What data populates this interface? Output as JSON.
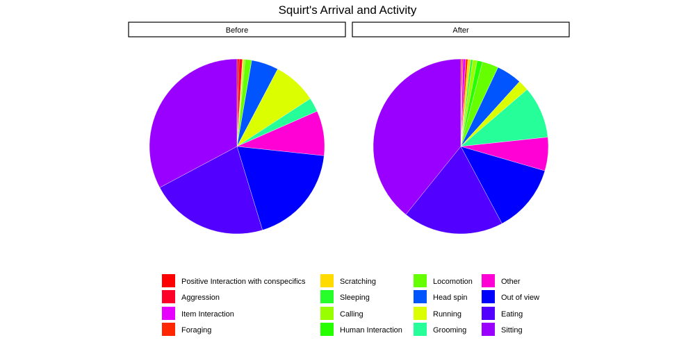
{
  "chart_data": {
    "type": "pie",
    "title": "Squirt's Arrival and Activity",
    "facets": [
      {
        "label": "Before",
        "slices": [
          {
            "category": "Positive Interaction with conspecifics",
            "value": 0.4
          },
          {
            "category": "Aggression",
            "value": 0.6
          },
          {
            "category": "Item Interaction",
            "value": 0.0
          },
          {
            "category": "Foraging",
            "value": 0.0
          },
          {
            "category": "Scratching",
            "value": 0.2
          },
          {
            "category": "Sleeping",
            "value": 0.0
          },
          {
            "category": "Calling",
            "value": 0.3
          },
          {
            "category": "Human Interaction",
            "value": 0.0
          },
          {
            "category": "Locomotion",
            "value": 1.2
          },
          {
            "category": "Head spin",
            "value": 5.0
          },
          {
            "category": "Running",
            "value": 8.1
          },
          {
            "category": "Grooming",
            "value": 2.6
          },
          {
            "category": "Other",
            "value": 8.3
          },
          {
            "category": "Out of view",
            "value": 18.6
          },
          {
            "category": "Eating",
            "value": 21.9
          },
          {
            "category": "Sitting",
            "value": 32.8
          }
        ]
      },
      {
        "label": "After",
        "slices": [
          {
            "category": "Positive Interaction with conspecifics",
            "value": 0.2
          },
          {
            "category": "Aggression",
            "value": 0.2
          },
          {
            "category": "Item Interaction",
            "value": 0.5
          },
          {
            "category": "Foraging",
            "value": 0.4
          },
          {
            "category": "Scratching",
            "value": 0.5
          },
          {
            "category": "Sleeping",
            "value": 0.4
          },
          {
            "category": "Calling",
            "value": 0.8
          },
          {
            "category": "Human Interaction",
            "value": 1.0
          },
          {
            "category": "Locomotion",
            "value": 3.0
          },
          {
            "category": "Head spin",
            "value": 4.7
          },
          {
            "category": "Running",
            "value": 2.0
          },
          {
            "category": "Grooming",
            "value": 9.6
          },
          {
            "category": "Other",
            "value": 6.2
          },
          {
            "category": "Out of view",
            "value": 12.7
          },
          {
            "category": "Eating",
            "value": 18.6
          },
          {
            "category": "Sitting",
            "value": 39.2
          }
        ]
      }
    ],
    "legend": {
      "position": "bottom",
      "columns": 4,
      "items": [
        {
          "label": "Positive Interaction with conspecifics",
          "color": "#FF0000"
        },
        {
          "label": "Aggression",
          "color": "#FF0029"
        },
        {
          "label": "Item Interaction",
          "color": "#E600FF"
        },
        {
          "label": "Foraging",
          "color": "#FF2600"
        },
        {
          "label": "Scratching",
          "color": "#FFDB00"
        },
        {
          "label": "Sleeping",
          "color": "#26FF29"
        },
        {
          "label": "Calling",
          "color": "#99FF00"
        },
        {
          "label": "Human Interaction",
          "color": "#26FF00"
        },
        {
          "label": "Locomotion",
          "color": "#66FF00"
        },
        {
          "label": "Head spin",
          "color": "#0055FF"
        },
        {
          "label": "Running",
          "color": "#DBFF00"
        },
        {
          "label": "Grooming",
          "color": "#26FF99"
        },
        {
          "label": "Other",
          "color": "#FF00D5"
        },
        {
          "label": "Out of view",
          "color": "#0000FF"
        },
        {
          "label": "Eating",
          "color": "#5200FF"
        },
        {
          "label": "Sitting",
          "color": "#9900FF"
        }
      ]
    }
  }
}
